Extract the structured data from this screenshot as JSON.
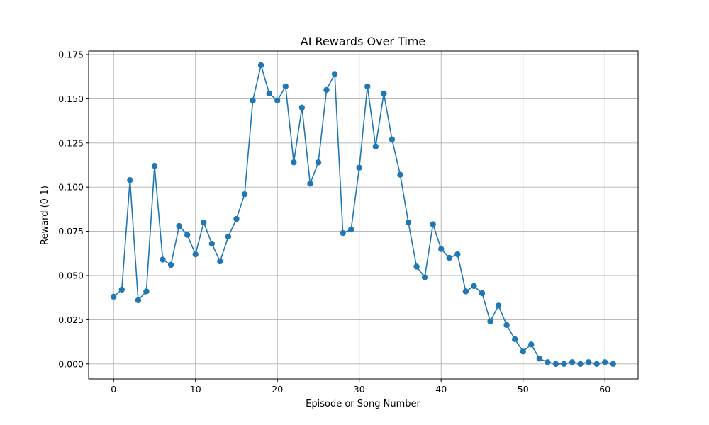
{
  "chart_data": {
    "type": "line",
    "title": "AI Rewards Over Time",
    "xlabel": "Episode or Song Number",
    "ylabel": "Reward (0-1)",
    "xlim": [
      -3.05,
      64.05
    ],
    "ylim": [
      -0.0085,
      0.177
    ],
    "grid": true,
    "marker": "circle",
    "x_ticks": [
      0,
      10,
      20,
      30,
      40,
      50,
      60
    ],
    "y_ticks": [
      0.0,
      0.025,
      0.05,
      0.075,
      0.1,
      0.125,
      0.15,
      0.175
    ],
    "y_tick_labels": [
      "0.000",
      "0.025",
      "0.050",
      "0.075",
      "0.100",
      "0.125",
      "0.150",
      "0.175"
    ],
    "series": [
      {
        "color": "#1f77b4",
        "x": [
          0,
          1,
          2,
          3,
          4,
          5,
          6,
          7,
          8,
          9,
          10,
          11,
          12,
          13,
          14,
          15,
          16,
          17,
          18,
          19,
          20,
          21,
          22,
          23,
          24,
          25,
          26,
          27,
          28,
          29,
          30,
          31,
          32,
          33,
          34,
          35,
          36,
          37,
          38,
          39,
          40,
          41,
          42,
          43,
          44,
          45,
          46,
          47,
          48,
          49,
          50,
          51,
          52,
          53,
          54,
          55,
          56,
          57,
          58,
          59,
          60,
          61
        ],
        "y": [
          0.038,
          0.042,
          0.104,
          0.036,
          0.041,
          0.112,
          0.059,
          0.056,
          0.078,
          0.073,
          0.062,
          0.08,
          0.068,
          0.058,
          0.072,
          0.082,
          0.096,
          0.149,
          0.169,
          0.153,
          0.149,
          0.157,
          0.114,
          0.145,
          0.102,
          0.114,
          0.155,
          0.164,
          0.074,
          0.076,
          0.111,
          0.157,
          0.123,
          0.153,
          0.127,
          0.107,
          0.08,
          0.055,
          0.049,
          0.079,
          0.065,
          0.06,
          0.062,
          0.041,
          0.044,
          0.04,
          0.024,
          0.033,
          0.022,
          0.014,
          0.007,
          0.011,
          0.003,
          0.001,
          0.0,
          0.0,
          0.001,
          0.0,
          0.001,
          0.0,
          0.001,
          0.0
        ]
      }
    ]
  }
}
